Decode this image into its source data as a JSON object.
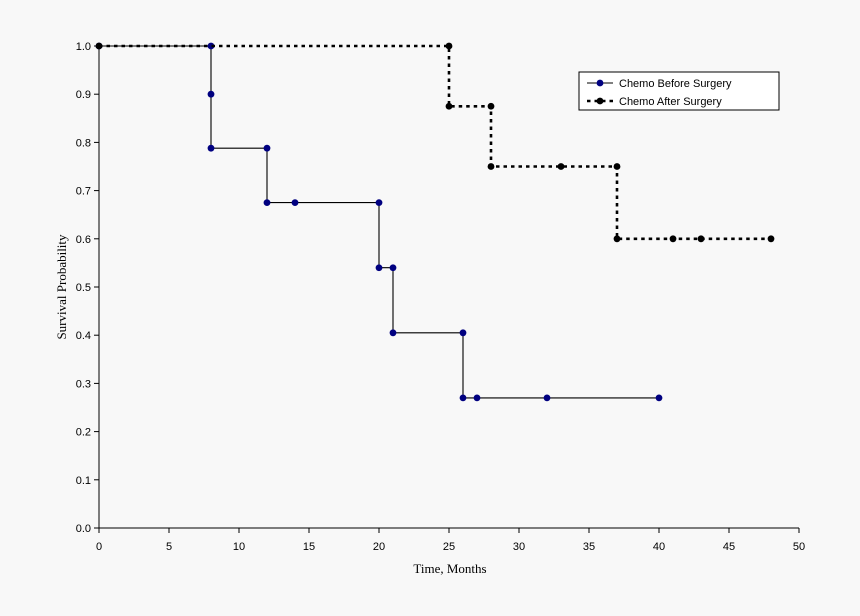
{
  "chart_data": {
    "type": "line",
    "step": true,
    "title": "",
    "xlabel": "Time, Months",
    "ylabel": "Survival Probability",
    "xlim": [
      0,
      50
    ],
    "ylim": [
      0,
      1.0
    ],
    "xticks": [
      0,
      5,
      10,
      15,
      20,
      25,
      30,
      35,
      40,
      45,
      50
    ],
    "xtick_labels": [
      "0",
      "5",
      "10",
      "15",
      "20",
      "25",
      "30",
      "35",
      "40",
      "45",
      "50"
    ],
    "yticks": [
      0,
      0.1,
      0.2,
      0.3,
      0.4,
      0.5,
      0.6,
      0.7,
      0.8,
      0.9,
      1.0
    ],
    "ytick_labels": [
      "0.0",
      "0.1",
      "0.2",
      "0.3",
      "0.4",
      "0.5",
      "0.6",
      "0.7",
      "0.8",
      "0.9",
      "1.0"
    ],
    "grid": false,
    "legend_position": "top-right",
    "series": [
      {
        "name": "Chemo Before Surgery",
        "color": "#000080",
        "line_color": "#000000",
        "line_style": "solid",
        "points": [
          {
            "x": 0,
            "y": 1.0
          },
          {
            "x": 8,
            "y": 1.0
          },
          {
            "x": 8,
            "y": 0.9
          },
          {
            "x": 8,
            "y": 0.788
          },
          {
            "x": 12,
            "y": 0.788
          },
          {
            "x": 12,
            "y": 0.675
          },
          {
            "x": 14,
            "y": 0.675
          },
          {
            "x": 20,
            "y": 0.675
          },
          {
            "x": 20,
            "y": 0.54
          },
          {
            "x": 21,
            "y": 0.54
          },
          {
            "x": 21,
            "y": 0.405
          },
          {
            "x": 26,
            "y": 0.405
          },
          {
            "x": 26,
            "y": 0.27
          },
          {
            "x": 27,
            "y": 0.27
          },
          {
            "x": 32,
            "y": 0.27
          },
          {
            "x": 40,
            "y": 0.27
          }
        ]
      },
      {
        "name": "Chemo After Surgery",
        "color": "#000000",
        "line_color": "#000000",
        "line_style": "dashed",
        "points": [
          {
            "x": 0,
            "y": 1.0
          },
          {
            "x": 25,
            "y": 1.0
          },
          {
            "x": 25,
            "y": 0.875
          },
          {
            "x": 28,
            "y": 0.875
          },
          {
            "x": 28,
            "y": 0.75
          },
          {
            "x": 33,
            "y": 0.75
          },
          {
            "x": 37,
            "y": 0.75
          },
          {
            "x": 37,
            "y": 0.6
          },
          {
            "x": 41,
            "y": 0.6
          },
          {
            "x": 43,
            "y": 0.6
          },
          {
            "x": 48,
            "y": 0.6
          }
        ]
      }
    ]
  }
}
